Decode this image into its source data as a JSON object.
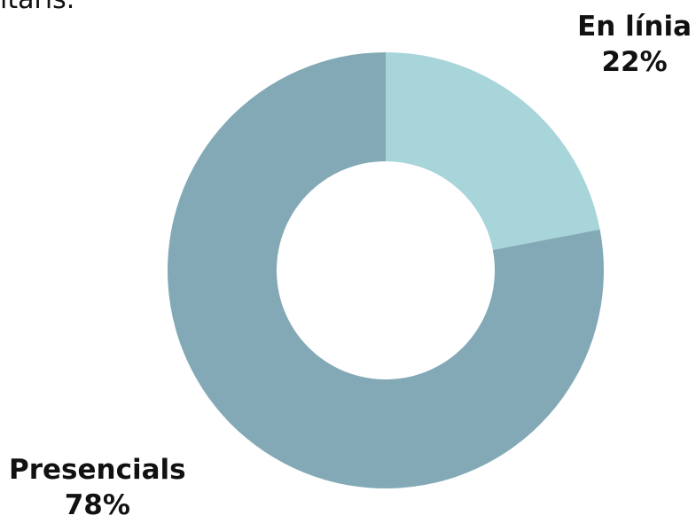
{
  "header": {
    "partial_text": "itaris."
  },
  "chart_data": {
    "type": "pie",
    "donut": true,
    "categories": [
      "En línia",
      "Presencials"
    ],
    "values": [
      22,
      78
    ],
    "value_labels": [
      "22%",
      "78%"
    ],
    "colors": [
      "#a8d5da",
      "#83a9b7"
    ]
  }
}
